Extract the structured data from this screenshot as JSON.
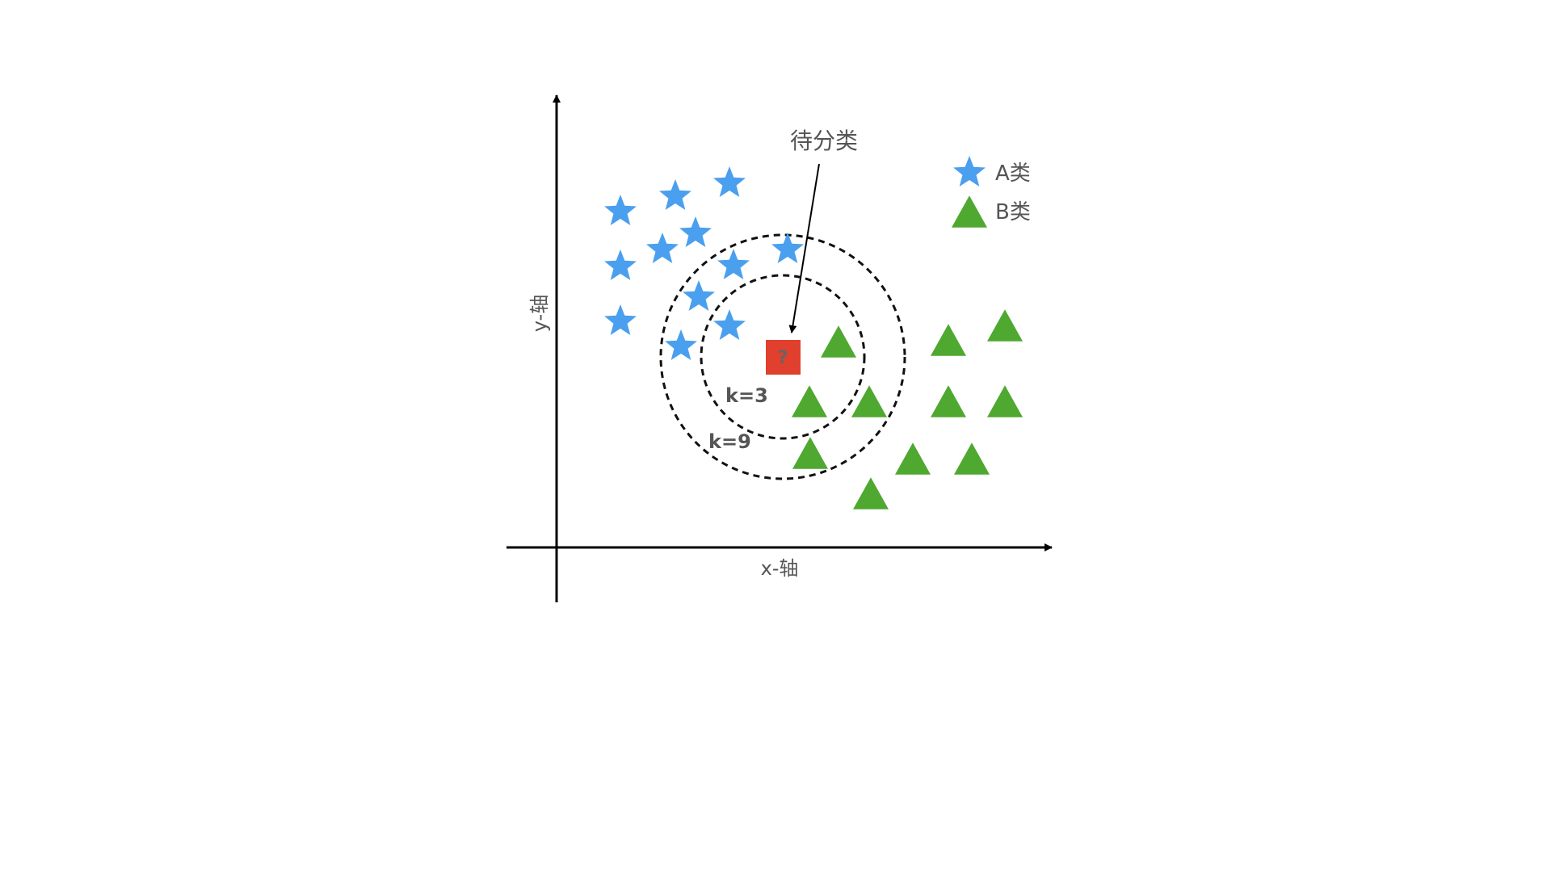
{
  "axes": {
    "x_label": "x-轴",
    "y_label": "y-轴"
  },
  "legend": {
    "items": [
      {
        "label": "A类",
        "marker": "star",
        "color": "#4A9FEF"
      },
      {
        "label": "B类",
        "marker": "triangle",
        "color": "#4FA830"
      }
    ]
  },
  "query": {
    "callout": "待分类",
    "symbol": "?",
    "color": "#E0402D"
  },
  "neighborhoods": [
    {
      "label": "k=3"
    },
    {
      "label": "k=9"
    }
  ]
}
